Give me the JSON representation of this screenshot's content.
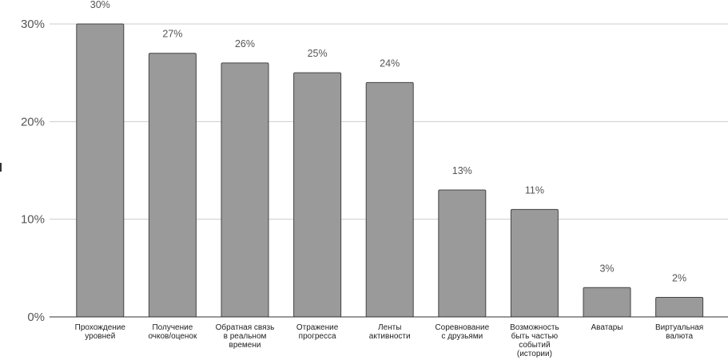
{
  "chart_data": {
    "type": "bar",
    "title": "",
    "xlabel": "",
    "ylabel": "",
    "ylim": [
      0,
      30
    ],
    "y_ticks": [
      {
        "value": 0,
        "label": "0%"
      },
      {
        "value": 10,
        "label": "10%"
      },
      {
        "value": 20,
        "label": "20%"
      },
      {
        "value": 30,
        "label": "30%"
      }
    ],
    "grid": true,
    "categories": [
      [
        "Прохождение",
        "уровней"
      ],
      [
        "Получение",
        "очков/оценок"
      ],
      [
        "Обратная связь",
        "в реальном",
        "времени"
      ],
      [
        "Отражение",
        "прогресса"
      ],
      [
        "Ленты",
        "активности"
      ],
      [
        "Соревнование",
        "с друзьями"
      ],
      [
        "Возможность",
        "быть частью",
        "событий",
        "(истории)"
      ],
      [
        "Аватары"
      ],
      [
        "Виртуальная",
        "валюта"
      ]
    ],
    "values": [
      30,
      27,
      26,
      25,
      24,
      13,
      11,
      3,
      2
    ],
    "value_labels": [
      "30%",
      "27%",
      "26%",
      "25%",
      "24%",
      "13%",
      "11%",
      "3%",
      "2%"
    ],
    "colors": {
      "bar": "#9a9a9a",
      "bar_edge": "#444444",
      "grid": "#cccccc",
      "axis": "#333333"
    }
  }
}
